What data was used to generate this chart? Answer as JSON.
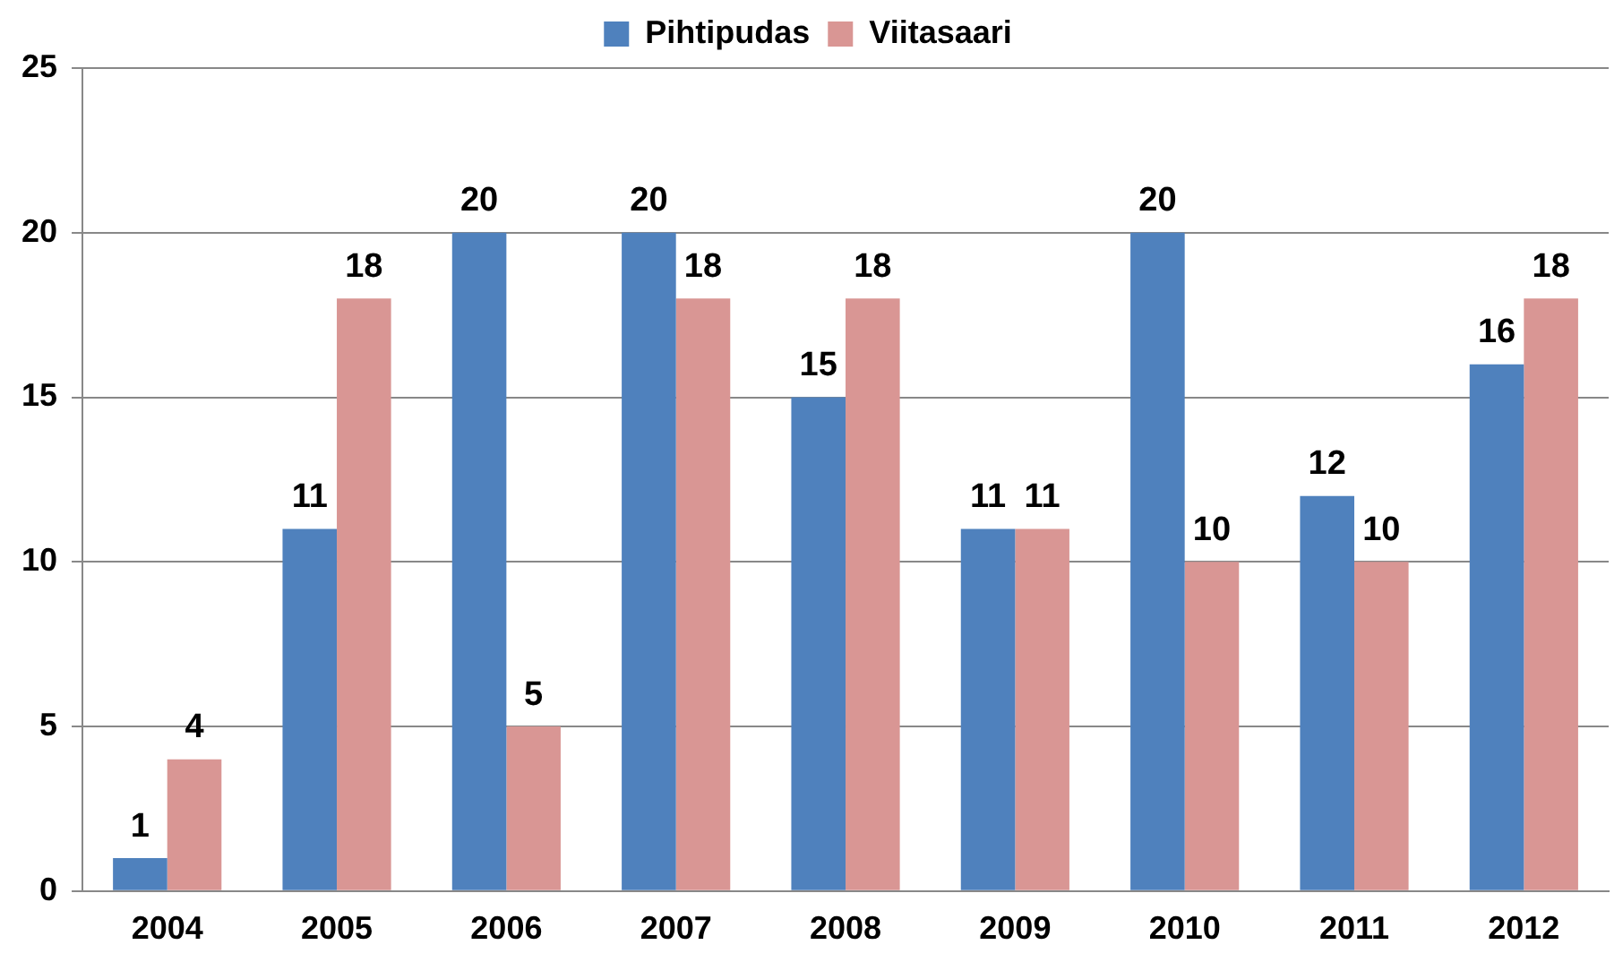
{
  "chart_data": {
    "type": "bar",
    "categories": [
      "2004",
      "2005",
      "2006",
      "2007",
      "2008",
      "2009",
      "2010",
      "2011",
      "2012"
    ],
    "series": [
      {
        "name": "Pihtipudas",
        "color": "#4f81bd",
        "values": [
          1,
          11,
          20,
          20,
          15,
          11,
          20,
          12,
          16
        ]
      },
      {
        "name": "Viitasaari",
        "color": "#d99694",
        "values": [
          4,
          18,
          5,
          18,
          18,
          11,
          10,
          10,
          18
        ]
      }
    ],
    "ylim": [
      0,
      25
    ],
    "yticks": [
      0,
      5,
      10,
      15,
      20,
      25
    ],
    "grid": "y",
    "legend": "top",
    "data_labels": true
  }
}
